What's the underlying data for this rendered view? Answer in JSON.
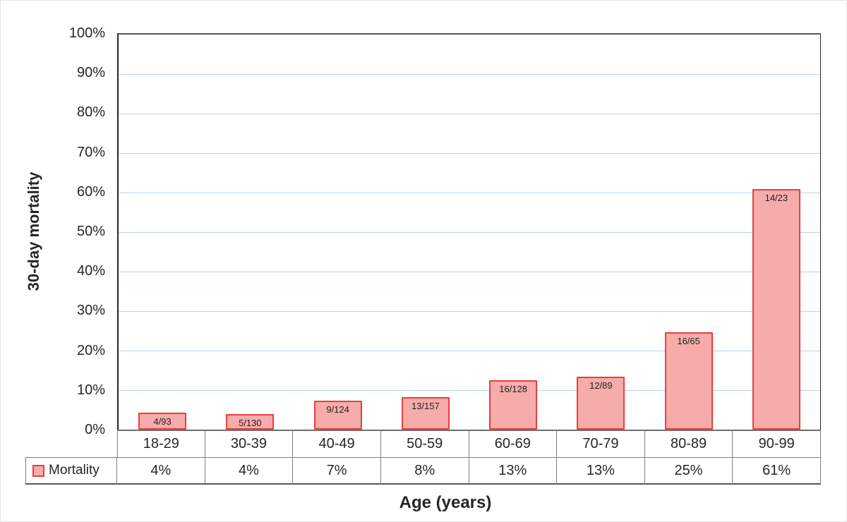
{
  "chart_data": {
    "type": "bar",
    "title": "",
    "xlabel": "Age (years)",
    "ylabel": "30-day mortality",
    "categories": [
      "18-29",
      "30-39",
      "40-49",
      "50-59",
      "60-69",
      "70-79",
      "80-89",
      "90-99"
    ],
    "series": [
      {
        "name": "Mortality",
        "values_percent": [
          4.3,
          3.85,
          7.26,
          8.28,
          12.5,
          13.48,
          24.62,
          60.87
        ],
        "bar_labels": [
          "4/93",
          "5/130",
          "9/124",
          "13/157",
          "16/128",
          "12/89",
          "16/65",
          "14/23"
        ],
        "table_values": [
          "4%",
          "4%",
          "7%",
          "8%",
          "13%",
          "13%",
          "25%",
          "61%"
        ]
      }
    ],
    "ylim": [
      0,
      100
    ],
    "ytick_step": 10,
    "ytick_labels": [
      "0%",
      "10%",
      "20%",
      "30%",
      "40%",
      "50%",
      "60%",
      "70%",
      "80%",
      "90%",
      "100%"
    ],
    "grid": true,
    "legend_position": "table-row-header",
    "colors": {
      "bar_fill": "#F6ACAB",
      "bar_border": "#EC3C3C",
      "gridline": "#B7D3EC",
      "axis_line": "#565656",
      "table_border": "#7F7F7F",
      "table_outer_border": "#595959",
      "text": "#262626"
    }
  }
}
